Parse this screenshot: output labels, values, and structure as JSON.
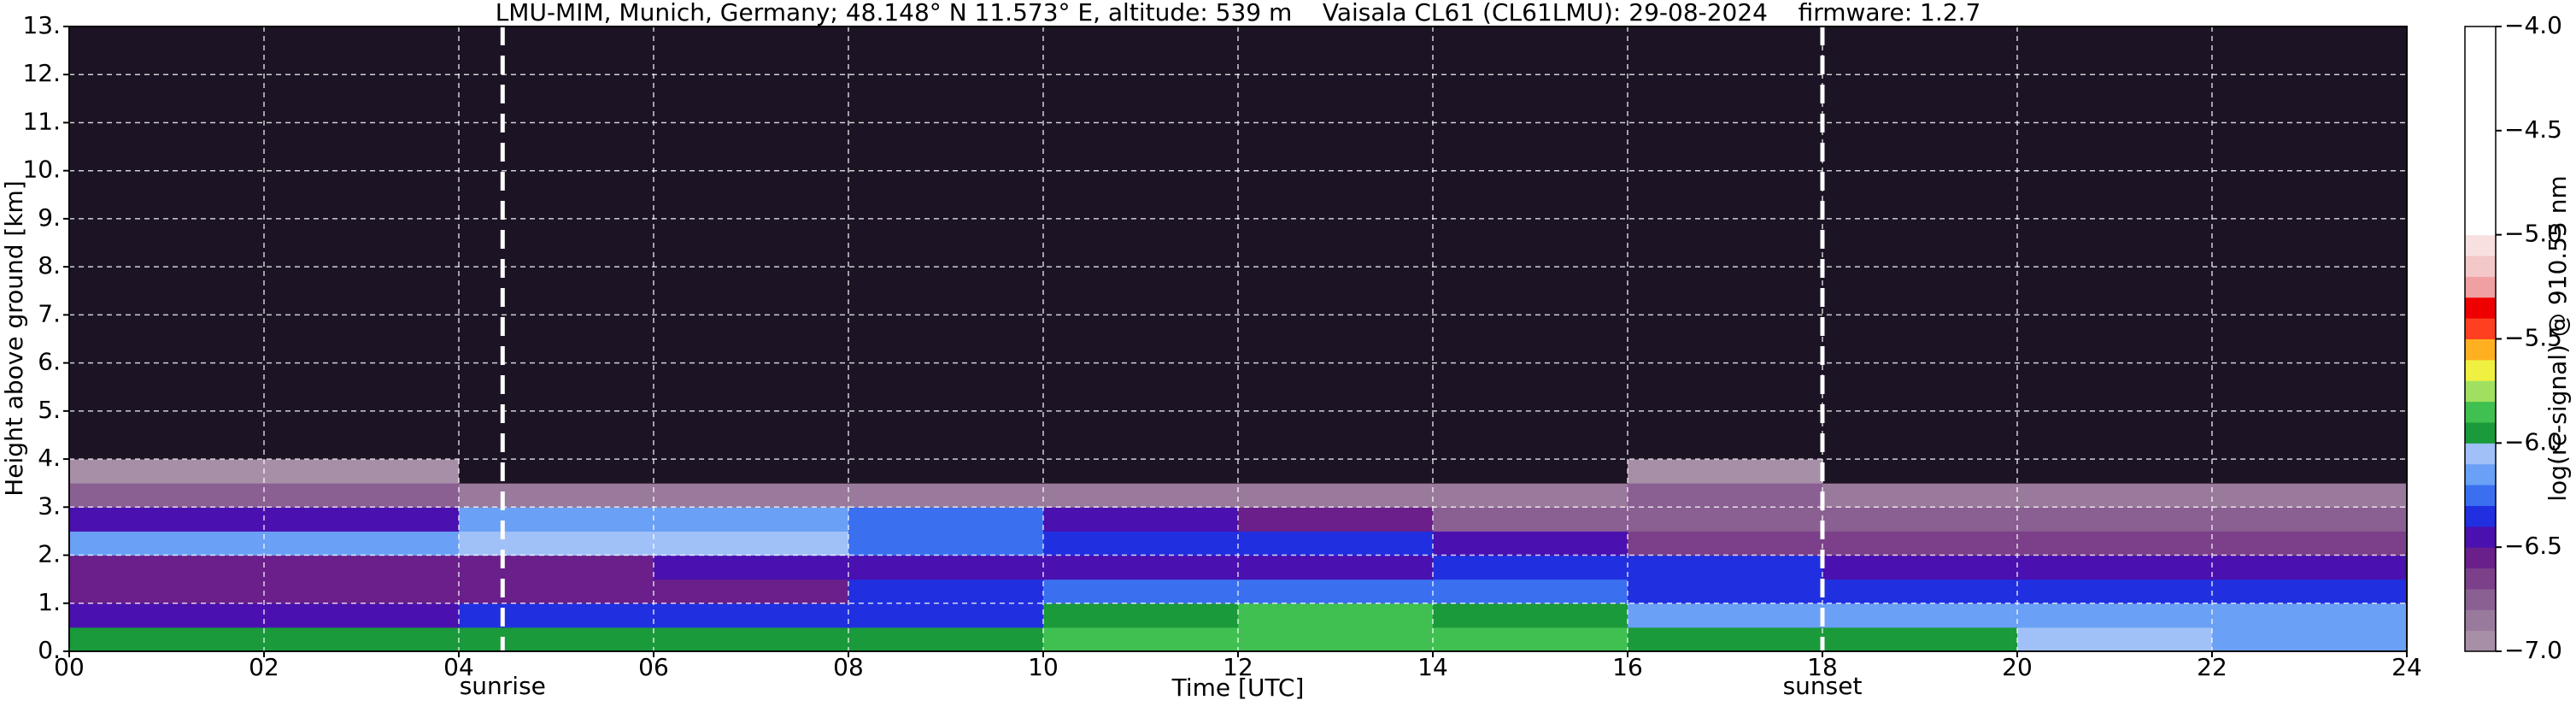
{
  "chart_data": {
    "type": "heatmap",
    "title": "LMU-MIM, Munich, Germany; 48.148° N 11.573° E, altitude: 539 m    Vaisala CL61 (CL61LMU): 29-08-2024    firmware: 1.2.7",
    "x_label": "Time [UTC]",
    "y_label": "Height above ground [km]",
    "xlim": [
      0,
      24
    ],
    "ylim": [
      0,
      13
    ],
    "xticks": [
      {
        "value": 0,
        "label": "00"
      },
      {
        "value": 2,
        "label": "02"
      },
      {
        "value": 4,
        "label": "04"
      },
      {
        "value": 6,
        "label": "06"
      },
      {
        "value": 8,
        "label": "08"
      },
      {
        "value": 10,
        "label": "10"
      },
      {
        "value": 12,
        "label": "12"
      },
      {
        "value": 14,
        "label": "14"
      },
      {
        "value": 16,
        "label": "16"
      },
      {
        "value": 18,
        "label": "18"
      },
      {
        "value": 20,
        "label": "20"
      },
      {
        "value": 22,
        "label": "22"
      },
      {
        "value": 24,
        "label": "24"
      }
    ],
    "yticks": [
      {
        "value": 0,
        "label": "0."
      },
      {
        "value": 1,
        "label": "1."
      },
      {
        "value": 2,
        "label": "2."
      },
      {
        "value": 3,
        "label": "3."
      },
      {
        "value": 4,
        "label": "4."
      },
      {
        "value": 5,
        "label": "5."
      },
      {
        "value": 6,
        "label": "6."
      },
      {
        "value": 7,
        "label": "7."
      },
      {
        "value": 8,
        "label": "8."
      },
      {
        "value": 9,
        "label": "9."
      },
      {
        "value": 10,
        "label": "10."
      },
      {
        "value": 11,
        "label": "11."
      },
      {
        "value": 12,
        "label": "12."
      },
      {
        "value": 13,
        "label": "13."
      }
    ],
    "grid": true,
    "x_edges": [
      0,
      2,
      4,
      6,
      8,
      10,
      12,
      14,
      16,
      18,
      20,
      22,
      24
    ],
    "y_edges": [
      0,
      0.5,
      1,
      1.5,
      2,
      2.5,
      3,
      3.5,
      4,
      6,
      8,
      10,
      13
    ],
    "z": [
      [
        -5.95,
        -5.95,
        -5.95,
        -5.95,
        -5.95,
        -5.9,
        -5.85,
        -5.9,
        -5.95,
        -5.95,
        -6.1,
        -6.2
      ],
      [
        -6.45,
        -6.45,
        -6.4,
        -6.4,
        -6.35,
        -5.95,
        -5.9,
        -6.0,
        -6.15,
        -6.2,
        -6.2,
        -6.15
      ],
      [
        -6.6,
        -6.6,
        -6.6,
        -6.6,
        -6.4,
        -6.3,
        -6.3,
        -6.3,
        -6.35,
        -6.4,
        -6.4,
        -6.35
      ],
      [
        -6.6,
        -6.6,
        -6.55,
        -6.5,
        -6.5,
        -6.45,
        -6.45,
        -6.4,
        -6.4,
        -6.45,
        -6.45,
        -6.45
      ],
      [
        -6.2,
        -6.2,
        -6.05,
        -6.1,
        -6.3,
        -6.35,
        -6.4,
        -6.5,
        -6.65,
        -6.7,
        -6.7,
        -6.7
      ],
      [
        -6.5,
        -6.5,
        -6.2,
        -6.15,
        -6.3,
        -6.45,
        -6.55,
        -6.75,
        -6.8,
        -6.8,
        -6.8,
        -6.8
      ],
      [
        -6.8,
        -6.8,
        -6.85,
        -6.9,
        -6.9,
        -6.9,
        -6.9,
        -6.9,
        -6.8,
        -6.9,
        -6.85,
        -6.9
      ],
      [
        -6.95,
        -6.95,
        -7.1,
        -7.1,
        -7.1,
        -7.1,
        -7.1,
        -7.1,
        -7.0,
        -7.1,
        -7.05,
        -7.1
      ],
      [
        -7.2,
        -7.2,
        -7.2,
        -7.2,
        -7.2,
        -7.2,
        -7.2,
        -7.2,
        -7.2,
        -7.2,
        -7.2,
        -7.2
      ],
      [
        -7.2,
        -7.2,
        -7.2,
        -7.2,
        -7.2,
        -7.2,
        -7.2,
        -7.2,
        -7.2,
        -7.2,
        -7.2,
        -7.2
      ],
      [
        -7.2,
        -7.2,
        -7.2,
        -7.2,
        -7.2,
        -7.2,
        -7.2,
        -7.2,
        -7.2,
        -7.2,
        -7.2,
        -7.2
      ],
      [
        -7.2,
        -7.2,
        -7.2,
        -7.2,
        -7.2,
        -7.2,
        -7.2,
        -7.2,
        -7.2,
        -7.2,
        -7.2,
        -7.2
      ]
    ],
    "annotations": [
      {
        "text": "sunrise",
        "x": 4.45
      },
      {
        "text": "sunset",
        "x": 18
      }
    ],
    "colorbar": {
      "label": "log(rc-signal) @ 910.55 nm",
      "lim": [
        -7,
        -4
      ],
      "ticks": [
        {
          "value": -7,
          "label": "−7.0"
        },
        {
          "value": -6.5,
          "label": "−6.5"
        },
        {
          "value": -6,
          "label": "−6.0"
        },
        {
          "value": -5.5,
          "label": "−5.5"
        },
        {
          "value": -5,
          "label": "−5.0"
        },
        {
          "value": -4.5,
          "label": "−4.5"
        },
        {
          "value": -4,
          "label": "−4.0"
        }
      ],
      "bounds": [
        -7.0,
        -6.9,
        -6.8,
        -6.7,
        -6.6,
        -6.5,
        -6.4,
        -6.3,
        -6.2,
        -6.1,
        -6.0,
        -5.9,
        -5.8,
        -5.7,
        -5.6,
        -5.5,
        -5.4,
        -5.3,
        -5.2,
        -5.1,
        -5.0,
        -4.0
      ],
      "colors": [
        "#a88fa8",
        "#9a7a9c",
        "#8a5f92",
        "#7b4089",
        "#6a1f8a",
        "#4a10b0",
        "#2030e0",
        "#3a70f0",
        "#6aa0f5",
        "#a0c0f8",
        "#1a9a3a",
        "#40c050",
        "#a0e060",
        "#f0f040",
        "#ffb020",
        "#ff4020",
        "#ee0000",
        "#f0a0a0",
        "#f4c8c8",
        "#f8e0e0",
        "#ffffff"
      ],
      "under_color": "#1c1424"
    }
  }
}
